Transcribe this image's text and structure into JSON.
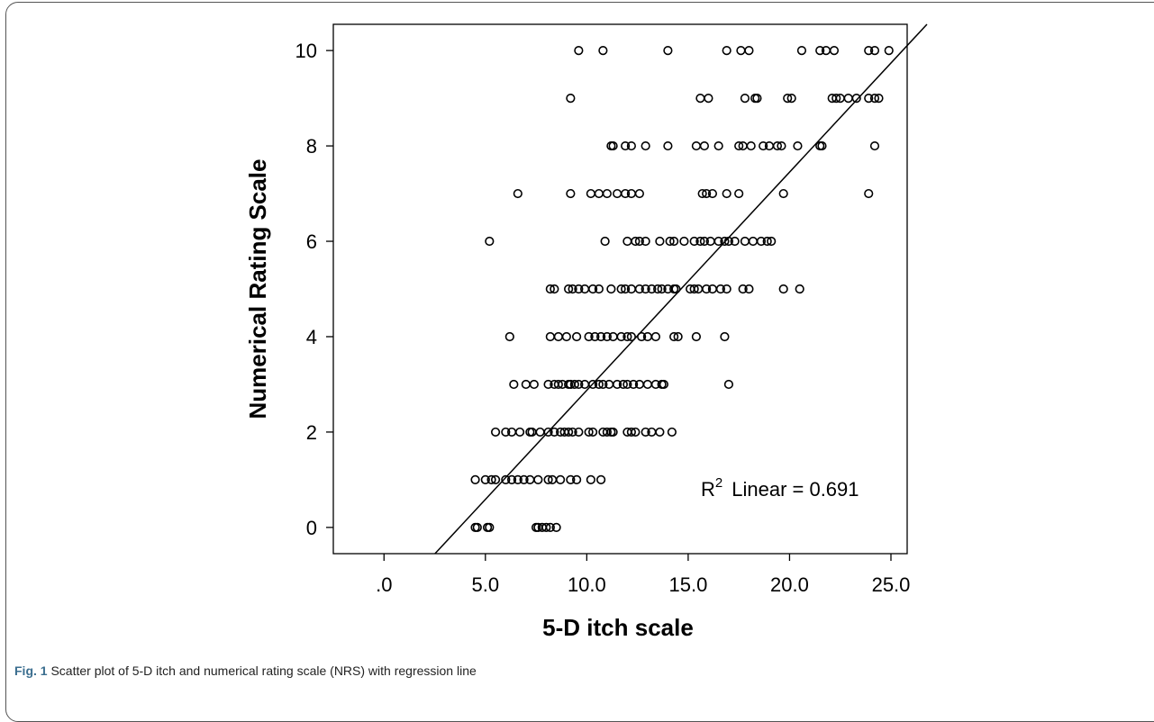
{
  "chart_data": {
    "type": "scatter",
    "xlabel": "5-D itch scale",
    "ylabel": "Numerical Rating Scale",
    "xlim": [
      -2.5,
      25.8
    ],
    "ylim": [
      -0.55,
      10.55
    ],
    "x_ticks": [
      ".0",
      "5.0",
      "10.0",
      "15.0",
      "20.0",
      "25.0"
    ],
    "x_tick_values": [
      0,
      5,
      10,
      15,
      20,
      25
    ],
    "y_ticks": [
      "0",
      "2",
      "4",
      "6",
      "8",
      "10"
    ],
    "y_tick_values": [
      0,
      2,
      4,
      6,
      8,
      10
    ],
    "annotation": {
      "r2_prefix": "R",
      "r2_sup": "2",
      "r2_text": "Linear = 0.691"
    },
    "regression_line": {
      "slope": 0.4575,
      "intercept": -1.7
    },
    "points": [
      [
        4.5,
        0
      ],
      [
        4.6,
        0
      ],
      [
        5.1,
        0
      ],
      [
        5.2,
        0
      ],
      [
        7.5,
        0
      ],
      [
        7.6,
        0
      ],
      [
        7.8,
        0
      ],
      [
        8.0,
        0
      ],
      [
        8.2,
        0
      ],
      [
        8.5,
        0
      ],
      [
        4.5,
        1
      ],
      [
        5.0,
        1
      ],
      [
        5.3,
        1
      ],
      [
        5.5,
        1
      ],
      [
        6.0,
        1
      ],
      [
        6.3,
        1
      ],
      [
        6.6,
        1
      ],
      [
        6.9,
        1
      ],
      [
        7.2,
        1
      ],
      [
        7.6,
        1
      ],
      [
        8.1,
        1
      ],
      [
        8.3,
        1
      ],
      [
        8.7,
        1
      ],
      [
        9.2,
        1
      ],
      [
        9.5,
        1
      ],
      [
        10.2,
        1
      ],
      [
        10.7,
        1
      ],
      [
        5.5,
        2
      ],
      [
        6.0,
        2
      ],
      [
        6.3,
        2
      ],
      [
        6.7,
        2
      ],
      [
        7.2,
        2
      ],
      [
        7.3,
        2
      ],
      [
        7.7,
        2
      ],
      [
        8.1,
        2
      ],
      [
        8.4,
        2
      ],
      [
        8.7,
        2
      ],
      [
        8.9,
        2
      ],
      [
        9.1,
        2
      ],
      [
        9.3,
        2
      ],
      [
        9.6,
        2
      ],
      [
        10.1,
        2
      ],
      [
        10.3,
        2
      ],
      [
        10.8,
        2
      ],
      [
        11.0,
        2
      ],
      [
        11.2,
        2
      ],
      [
        11.3,
        2
      ],
      [
        12.0,
        2
      ],
      [
        12.2,
        2
      ],
      [
        12.4,
        2
      ],
      [
        12.9,
        2
      ],
      [
        13.2,
        2
      ],
      [
        13.6,
        2
      ],
      [
        14.2,
        2
      ],
      [
        6.4,
        3
      ],
      [
        7.0,
        3
      ],
      [
        7.4,
        3
      ],
      [
        8.1,
        3
      ],
      [
        8.4,
        3
      ],
      [
        8.6,
        3
      ],
      [
        8.8,
        3
      ],
      [
        9.1,
        3
      ],
      [
        9.2,
        3
      ],
      [
        9.4,
        3
      ],
      [
        9.6,
        3
      ],
      [
        9.9,
        3
      ],
      [
        10.3,
        3
      ],
      [
        10.6,
        3
      ],
      [
        10.8,
        3
      ],
      [
        11.1,
        3
      ],
      [
        11.5,
        3
      ],
      [
        11.8,
        3
      ],
      [
        12.0,
        3
      ],
      [
        12.3,
        3
      ],
      [
        12.6,
        3
      ],
      [
        13.0,
        3
      ],
      [
        13.4,
        3
      ],
      [
        13.7,
        3
      ],
      [
        13.8,
        3
      ],
      [
        17.0,
        3
      ],
      [
        6.2,
        4
      ],
      [
        8.2,
        4
      ],
      [
        8.6,
        4
      ],
      [
        9.0,
        4
      ],
      [
        9.5,
        4
      ],
      [
        10.1,
        4
      ],
      [
        10.4,
        4
      ],
      [
        10.7,
        4
      ],
      [
        11.0,
        4
      ],
      [
        11.3,
        4
      ],
      [
        11.7,
        4
      ],
      [
        12.0,
        4
      ],
      [
        12.2,
        4
      ],
      [
        12.7,
        4
      ],
      [
        13.0,
        4
      ],
      [
        13.4,
        4
      ],
      [
        14.3,
        4
      ],
      [
        14.5,
        4
      ],
      [
        15.4,
        4
      ],
      [
        16.8,
        4
      ],
      [
        8.2,
        5
      ],
      [
        8.4,
        5
      ],
      [
        9.1,
        5
      ],
      [
        9.3,
        5
      ],
      [
        9.6,
        5
      ],
      [
        9.9,
        5
      ],
      [
        10.3,
        5
      ],
      [
        10.6,
        5
      ],
      [
        11.2,
        5
      ],
      [
        11.7,
        5
      ],
      [
        11.9,
        5
      ],
      [
        12.2,
        5
      ],
      [
        12.6,
        5
      ],
      [
        12.9,
        5
      ],
      [
        13.2,
        5
      ],
      [
        13.5,
        5
      ],
      [
        13.7,
        5
      ],
      [
        14.0,
        5
      ],
      [
        14.3,
        5
      ],
      [
        14.4,
        5
      ],
      [
        15.1,
        5
      ],
      [
        15.3,
        5
      ],
      [
        15.5,
        5
      ],
      [
        15.9,
        5
      ],
      [
        16.2,
        5
      ],
      [
        16.6,
        5
      ],
      [
        16.9,
        5
      ],
      [
        17.7,
        5
      ],
      [
        18.0,
        5
      ],
      [
        19.7,
        5
      ],
      [
        20.5,
        5
      ],
      [
        5.2,
        6
      ],
      [
        10.9,
        6
      ],
      [
        12.0,
        6
      ],
      [
        12.4,
        6
      ],
      [
        12.6,
        6
      ],
      [
        12.9,
        6
      ],
      [
        13.6,
        6
      ],
      [
        14.1,
        6
      ],
      [
        14.3,
        6
      ],
      [
        14.8,
        6
      ],
      [
        15.3,
        6
      ],
      [
        15.6,
        6
      ],
      [
        15.8,
        6
      ],
      [
        16.1,
        6
      ],
      [
        16.5,
        6
      ],
      [
        16.8,
        6
      ],
      [
        17.0,
        6
      ],
      [
        17.3,
        6
      ],
      [
        17.8,
        6
      ],
      [
        18.2,
        6
      ],
      [
        18.6,
        6
      ],
      [
        18.9,
        6
      ],
      [
        19.1,
        6
      ],
      [
        6.6,
        7
      ],
      [
        9.2,
        7
      ],
      [
        10.2,
        7
      ],
      [
        10.6,
        7
      ],
      [
        11.0,
        7
      ],
      [
        11.5,
        7
      ],
      [
        11.9,
        7
      ],
      [
        12.2,
        7
      ],
      [
        12.6,
        7
      ],
      [
        15.7,
        7
      ],
      [
        15.9,
        7
      ],
      [
        16.2,
        7
      ],
      [
        16.9,
        7
      ],
      [
        17.5,
        7
      ],
      [
        19.7,
        7
      ],
      [
        23.9,
        7
      ],
      [
        11.2,
        8
      ],
      [
        11.3,
        8
      ],
      [
        11.9,
        8
      ],
      [
        12.2,
        8
      ],
      [
        12.9,
        8
      ],
      [
        14.0,
        8
      ],
      [
        15.4,
        8
      ],
      [
        15.8,
        8
      ],
      [
        16.5,
        8
      ],
      [
        17.5,
        8
      ],
      [
        17.7,
        8
      ],
      [
        18.1,
        8
      ],
      [
        18.7,
        8
      ],
      [
        19.0,
        8
      ],
      [
        19.4,
        8
      ],
      [
        19.6,
        8
      ],
      [
        20.4,
        8
      ],
      [
        21.5,
        8
      ],
      [
        21.6,
        8
      ],
      [
        24.2,
        8
      ],
      [
        9.2,
        9
      ],
      [
        15.6,
        9
      ],
      [
        16.0,
        9
      ],
      [
        17.8,
        9
      ],
      [
        18.3,
        9
      ],
      [
        18.4,
        9
      ],
      [
        19.9,
        9
      ],
      [
        20.1,
        9
      ],
      [
        22.1,
        9
      ],
      [
        22.3,
        9
      ],
      [
        22.5,
        9
      ],
      [
        22.9,
        9
      ],
      [
        23.3,
        9
      ],
      [
        23.9,
        9
      ],
      [
        24.2,
        9
      ],
      [
        24.4,
        9
      ],
      [
        9.6,
        10
      ],
      [
        10.8,
        10
      ],
      [
        14.0,
        10
      ],
      [
        16.9,
        10
      ],
      [
        17.6,
        10
      ],
      [
        18.0,
        10
      ],
      [
        20.6,
        10
      ],
      [
        21.5,
        10
      ],
      [
        21.8,
        10
      ],
      [
        22.2,
        10
      ],
      [
        23.9,
        10
      ],
      [
        24.2,
        10
      ],
      [
        24.9,
        10
      ]
    ]
  },
  "caption": {
    "label": "Fig. 1",
    "text": " Scatter plot of 5-D itch and numerical rating scale (NRS) with regression line"
  }
}
